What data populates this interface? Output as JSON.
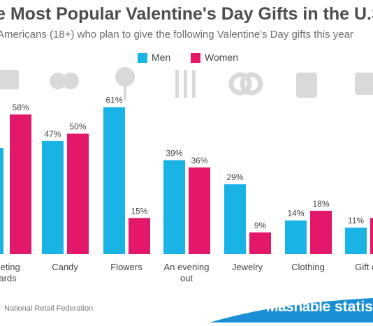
{
  "header": {
    "title": "e Most Popular Valentine's Day Gifts in the U.S.",
    "subtitle": "Americans (18+) who plan to give the following Valentine's Day gifts this year"
  },
  "footer": {
    "source": "National Retail Federation",
    "brand": "Mashable",
    "brand2": "statis"
  },
  "colors": {
    "men": "#1ab3e6",
    "women": "#e4186a",
    "icon": "#d9d9d9",
    "footer_band": "#1a8fd6"
  },
  "icons": [
    "greeting-card-icon",
    "candy-hearts-icon",
    "rose-icon",
    "cutlery-icon",
    "rings-icon",
    "shirt-icon",
    "gift-card-icon"
  ],
  "chart_data": {
    "type": "bar",
    "title": "e Most Popular Valentine's Day Gifts in the U.S.",
    "subtitle": "Americans (18+) who plan to give the following Valentine's Day gifts this year",
    "categories": [
      "eeting\nards",
      "Candy",
      "Flowers",
      "An evening\nout",
      "Jewelry",
      "Clothing",
      "Gift ca"
    ],
    "series": [
      {
        "name": "Men",
        "values": [
          null,
          47,
          61,
          39,
          29,
          14,
          11
        ],
        "labels": [
          "",
          "47%",
          "61%",
          "39%",
          "29%",
          "14%",
          "11%"
        ]
      },
      {
        "name": "Women",
        "values": [
          58,
          50,
          15,
          36,
          9,
          18,
          15
        ],
        "labels": [
          "58%",
          "50%",
          "15%",
          "36%",
          "9%",
          "18%",
          ""
        ]
      }
    ],
    "ylim": [
      0,
      100
    ],
    "legend": "top-center",
    "grid": false
  }
}
